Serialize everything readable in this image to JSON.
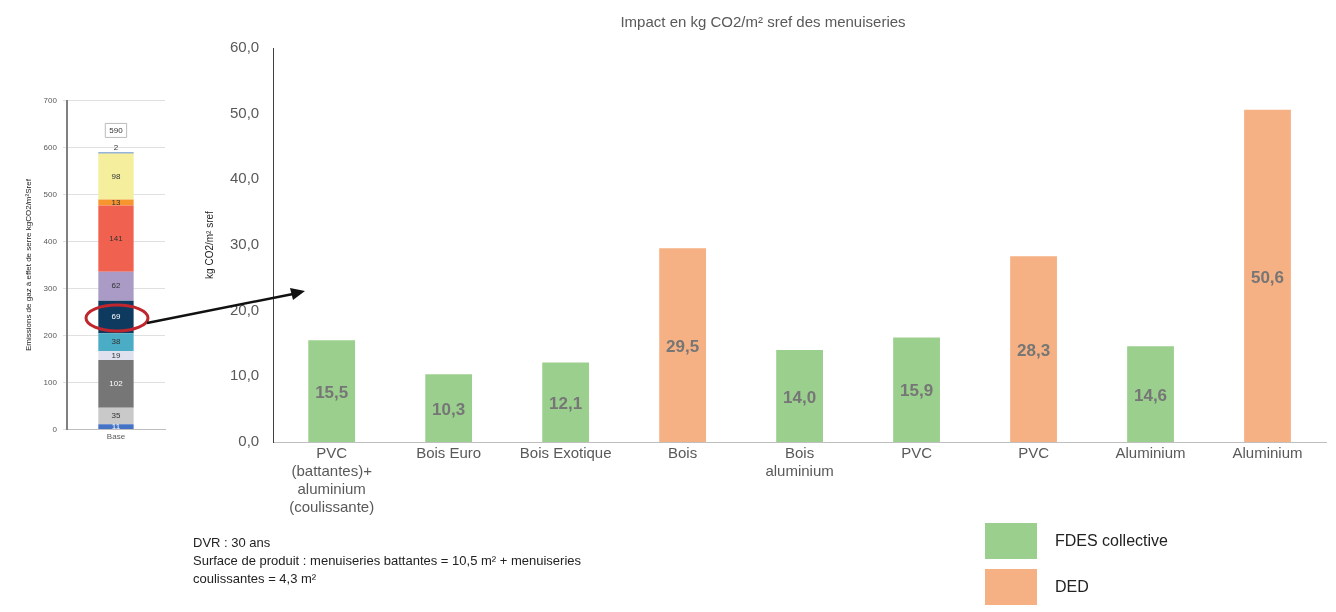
{
  "chart_data": [
    {
      "type": "bar",
      "ylabel": "Emissions de gaz à effet de serre kgCO2/m²Sref",
      "categories": [
        "Base"
      ],
      "stacked": true,
      "data_labels": true,
      "totals": [
        "590"
      ],
      "ylim": [
        0,
        700
      ],
      "yticks": [
        0,
        100,
        200,
        300,
        400,
        500,
        600,
        700
      ],
      "grid": "y",
      "series": [
        {
          "color": "#4472c4",
          "values": [
            11
          ]
        },
        {
          "color": "#c9c9c9",
          "values": [
            35
          ]
        },
        {
          "color": "#767676",
          "values": [
            102
          ]
        },
        {
          "color": "#dfe1ee",
          "values": [
            19
          ]
        },
        {
          "color": "#4bacc6",
          "values": [
            38
          ]
        },
        {
          "color": "#0f3a5f",
          "values": [
            69
          ]
        },
        {
          "color": "#a99bc5",
          "values": [
            62
          ]
        },
        {
          "color": "#f0624f",
          "values": [
            141
          ]
        },
        {
          "color": "#f7962f",
          "values": [
            13
          ]
        },
        {
          "color": "#f4ee9d",
          "values": [
            98
          ]
        },
        {
          "color": "#2e6bb5",
          "values": [
            2
          ]
        }
      ]
    },
    {
      "type": "bar",
      "title": "Impact en kg CO2/m² sref des menuiseries",
      "ylabel": "kg CO2/m² sref",
      "categories": [
        "PVC (battantes)+ aluminium (coulissante)",
        "Bois Euro",
        "Bois Exotique",
        "Bois",
        "Bois aluminium",
        "PVC",
        "PVC",
        "Aluminium",
        "Aluminium"
      ],
      "legend": "bottom right",
      "ylim": [
        0,
        60
      ],
      "yticks": [
        {
          "value": 0,
          "label": "0,0"
        },
        {
          "value": 10,
          "label": "10,0"
        },
        {
          "value": 20,
          "label": "20,0"
        },
        {
          "value": 30,
          "label": "30,0"
        },
        {
          "value": 40,
          "label": "40,0"
        },
        {
          "value": 50,
          "label": "50,0"
        },
        {
          "value": 60,
          "label": "60,0"
        }
      ],
      "series": [
        {
          "name": "FDES collective",
          "color": "#9bcf8e",
          "values": [
            15.5,
            10.3,
            12.1,
            null,
            14.0,
            15.9,
            null,
            14.6,
            null
          ],
          "value_labels": [
            "15,5",
            "10,3",
            "12,1",
            null,
            "14,0",
            "15,9",
            null,
            "14,6",
            null
          ]
        },
        {
          "name": "DED",
          "color": "#f5b183",
          "values": [
            null,
            null,
            null,
            29.5,
            null,
            null,
            28.3,
            null,
            50.6
          ],
          "value_labels": [
            null,
            null,
            null,
            "29,5",
            null,
            null,
            "28,3",
            null,
            "50,6"
          ]
        }
      ],
      "annotations": [
        "DVR : 30 ans",
        "Surface de produit : menuiseries battantes = 10,5 m² + menuiseries coulissantes = 4,3 m²"
      ]
    }
  ]
}
